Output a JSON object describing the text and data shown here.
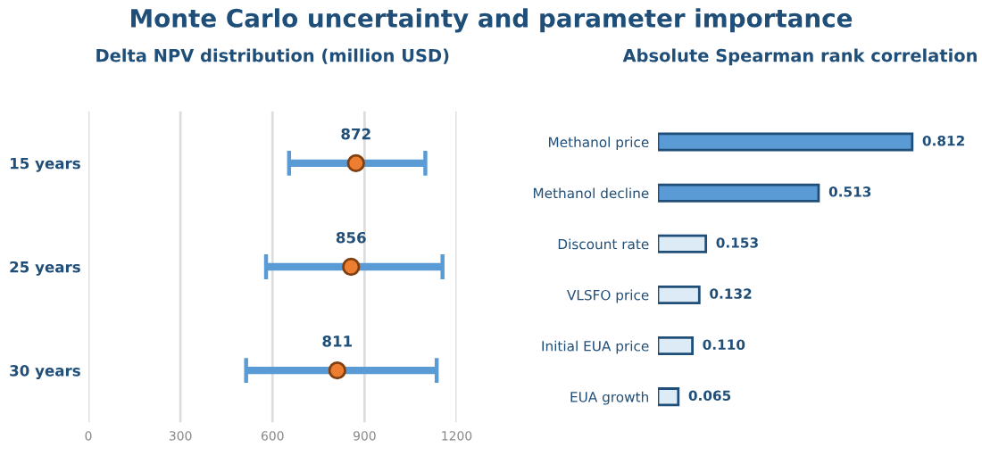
{
  "chart_data": [
    {
      "type": "scatter",
      "title": "Monte Carlo uncertainty and parameter importance",
      "subtitle": "Delta NPV distribution (million USD)",
      "orientation": "horizontal",
      "categories": [
        "15 years",
        "25 years",
        "30 years"
      ],
      "values": [
        872,
        856,
        811
      ],
      "color": "#ed7d31",
      "errors": [
        [
          654,
          1098
        ],
        [
          579,
          1154
        ],
        [
          514,
          1135
        ]
      ],
      "xlim": [
        0,
        1200
      ],
      "xticks": [
        0,
        300,
        600,
        900,
        1200
      ],
      "grid": "x",
      "marker": "circle",
      "data_labels": true
    },
    {
      "type": "bar",
      "title": "Absolute Spearman rank correlation",
      "orientation": "horizontal",
      "categories": [
        "Methanol price",
        "Methanol decline",
        "Discount rate",
        "VLSFO price",
        "Initial EUA price",
        "EUA growth"
      ],
      "values": [
        0.812,
        0.513,
        0.153,
        0.132,
        0.11,
        0.065
      ],
      "value_labels": [
        "0.812",
        "0.513",
        "0.153",
        "0.132",
        "0.110",
        "0.065"
      ],
      "colors": [
        "#5b9bd5",
        "#5b9bd5",
        "#ddebf7",
        "#ddebf7",
        "#ddebf7",
        "#ddebf7"
      ]
    }
  ]
}
